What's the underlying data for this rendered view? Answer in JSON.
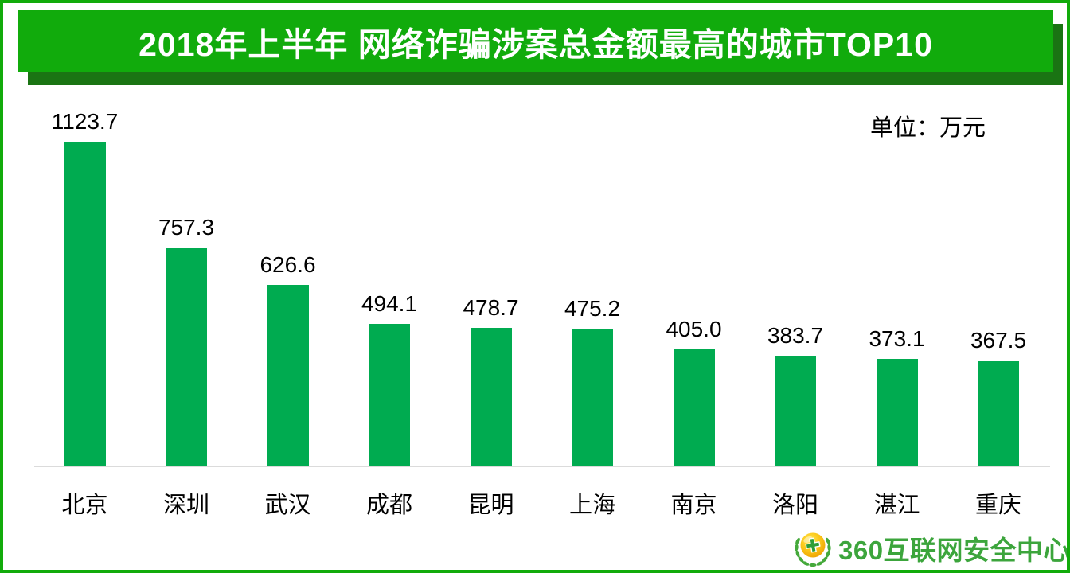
{
  "header": {
    "title": "2018年上半年 网络诈骗涉案总金额最高的城市TOP10"
  },
  "chart": {
    "unit_label": "单位：万元"
  },
  "chart_data": {
    "type": "bar",
    "title": "2018年上半年 网络诈骗涉案总金额最高的城市TOP10",
    "categories": [
      "北京",
      "深圳",
      "武汉",
      "成都",
      "昆明",
      "上海",
      "南京",
      "洛阳",
      "湛江",
      "重庆"
    ],
    "values": [
      1123.7,
      757.3,
      626.6,
      494.1,
      478.7,
      475.2,
      405.0,
      383.7,
      373.1,
      367.5
    ],
    "xlabel": "",
    "ylabel": "单位：万元",
    "ylim": [
      0,
      1200
    ],
    "value_labels_shown": true,
    "value_label_decimals": 1,
    "grid": false,
    "legend_position": "none",
    "y_axis_visible": false,
    "bar_color": "#00ab50"
  },
  "footer": {
    "logo_text": "360互联网安全中心"
  },
  "colors": {
    "banner_green": "#11ab0c",
    "banner_shadow_green": "#1a7413",
    "frame_border_green": "#12ab0b",
    "bar_green": "#00ab50",
    "axis_gray": "#dbdbdb",
    "logo_green": "#3ca53c",
    "title_text": "#ffffff",
    "label_text": "#000000"
  }
}
